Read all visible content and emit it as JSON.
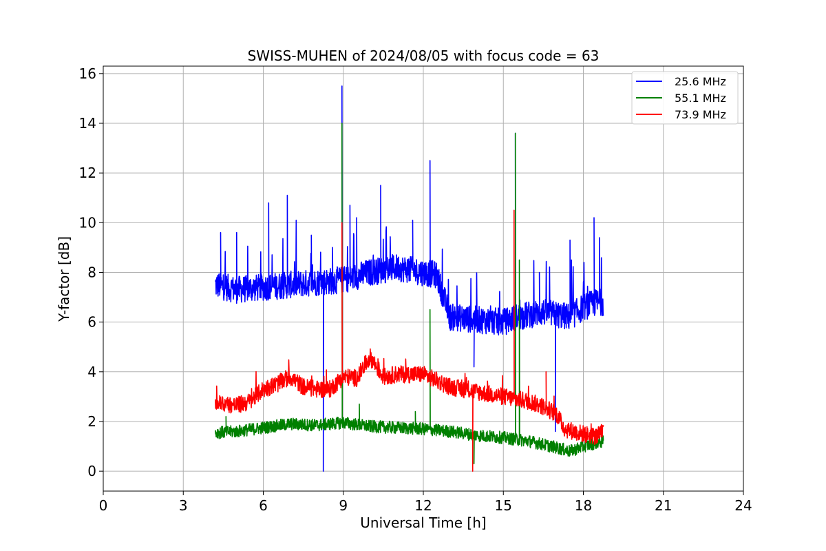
{
  "chart_data": {
    "type": "line",
    "title": "SWISS-MUHEN of 2024/08/05 with focus code = 63",
    "xlabel": "Universal Time [h]",
    "ylabel": "Y-factor [dB]",
    "xlim": [
      0,
      24
    ],
    "ylim": [
      -0.8,
      16.3
    ],
    "xticks": [
      0,
      3,
      6,
      9,
      12,
      15,
      18,
      21,
      24
    ],
    "yticks": [
      0,
      2,
      4,
      6,
      8,
      10,
      12,
      14,
      16
    ],
    "grid": true,
    "legend_position": "top-right",
    "series": [
      {
        "name": "25.6 MHz",
        "color": "#0000ff",
        "x": [
          4.2,
          5.0,
          6.0,
          7.0,
          8.0,
          9.0,
          10.0,
          11.0,
          12.0,
          12.5,
          13.0,
          14.0,
          15.0,
          15.5,
          16.0,
          16.5,
          17.0,
          17.5,
          18.0,
          18.5,
          18.75
        ],
        "y": [
          7.5,
          7.3,
          7.4,
          7.5,
          7.6,
          7.7,
          8.0,
          8.2,
          8.0,
          7.9,
          6.2,
          6.1,
          6.0,
          6.2,
          6.3,
          6.4,
          6.3,
          6.2,
          6.6,
          6.8,
          6.8
        ],
        "spikes": [
          [
            4.4,
            9.6
          ],
          [
            5.0,
            9.6
          ],
          [
            6.2,
            10.8
          ],
          [
            6.9,
            11.1
          ],
          [
            7.8,
            9.5
          ],
          [
            8.25,
            0.0
          ],
          [
            8.95,
            15.5
          ],
          [
            9.25,
            10.7
          ],
          [
            9.5,
            10.2
          ],
          [
            10.4,
            11.5
          ],
          [
            11.6,
            10.1
          ],
          [
            12.25,
            12.5
          ],
          [
            13.9,
            4.2
          ],
          [
            15.45,
            13.6
          ],
          [
            16.35,
            8.0
          ],
          [
            16.95,
            1.6
          ],
          [
            17.5,
            9.3
          ],
          [
            18.4,
            10.2
          ],
          [
            18.6,
            9.4
          ]
        ]
      },
      {
        "name": "55.1 MHz",
        "color": "#008000",
        "x": [
          4.2,
          5.0,
          6.0,
          7.0,
          8.0,
          9.0,
          10.0,
          11.0,
          12.0,
          13.0,
          14.0,
          15.0,
          16.0,
          17.0,
          17.5,
          18.0,
          18.5,
          18.75
        ],
        "y": [
          1.55,
          1.6,
          1.75,
          1.9,
          1.85,
          1.95,
          1.8,
          1.75,
          1.7,
          1.6,
          1.45,
          1.35,
          1.2,
          0.95,
          0.8,
          1.0,
          1.15,
          1.2
        ],
        "spikes": [
          [
            4.6,
            2.2
          ],
          [
            8.95,
            14.0
          ],
          [
            9.6,
            2.7
          ],
          [
            11.7,
            2.4
          ],
          [
            12.25,
            6.5
          ],
          [
            13.9,
            0.3
          ],
          [
            15.45,
            13.6
          ],
          [
            15.6,
            8.5
          ]
        ]
      },
      {
        "name": "73.9 MHz",
        "color": "#ff0000",
        "x": [
          4.2,
          5.0,
          5.5,
          6.0,
          6.5,
          7.0,
          7.5,
          8.0,
          8.5,
          9.0,
          9.5,
          10.0,
          10.5,
          11.0,
          12.0,
          13.0,
          14.0,
          15.0,
          15.5,
          16.0,
          16.5,
          17.0,
          17.3,
          18.0,
          18.5,
          18.75
        ],
        "y": [
          2.75,
          2.65,
          2.8,
          3.3,
          3.5,
          3.8,
          3.4,
          3.3,
          3.3,
          3.8,
          3.75,
          4.6,
          3.8,
          3.9,
          3.9,
          3.4,
          3.2,
          3.0,
          2.9,
          2.8,
          2.6,
          2.3,
          1.7,
          1.5,
          1.4,
          1.6
        ],
        "spikes": [
          [
            8.95,
            10.0
          ],
          [
            13.85,
            0.0
          ],
          [
            15.4,
            10.5
          ],
          [
            16.6,
            4.0
          ]
        ]
      }
    ]
  }
}
